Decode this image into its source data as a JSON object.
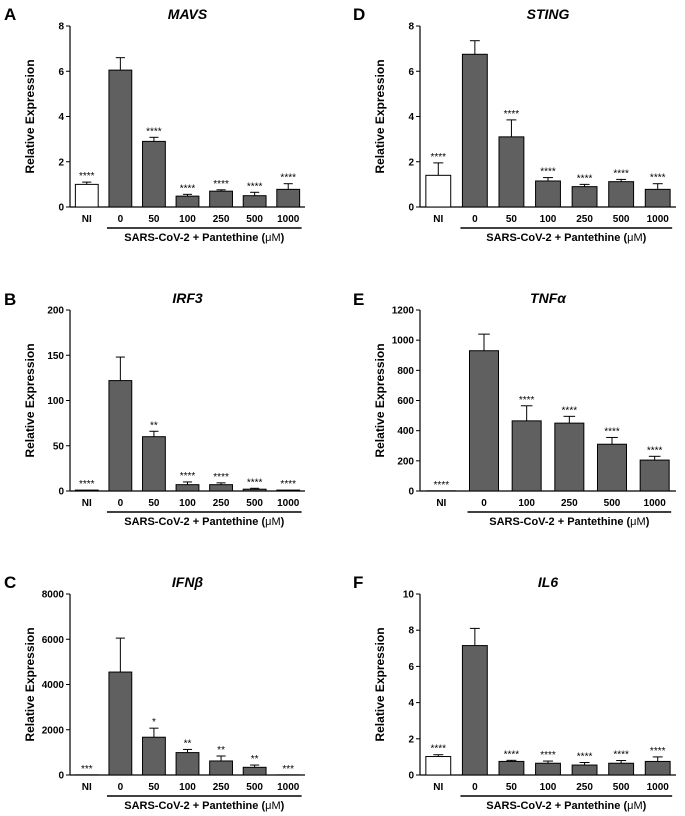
{
  "figure": {
    "group_label_prefix": "SARS-CoV-2 + Pantethine (",
    "group_label_unit": "μM",
    "group_label_suffix": ")"
  },
  "chart_data": [
    {
      "panel": "A",
      "title": "MAVS",
      "type": "bar",
      "ylabel": "Relative Expression",
      "ylim": [
        0,
        8
      ],
      "yticks": [
        "0",
        "2",
        "4",
        "6",
        "8"
      ],
      "categories": [
        "NI",
        "0",
        "50",
        "100",
        "250",
        "500",
        "1000"
      ],
      "values": [
        1.0,
        6.05,
        2.9,
        0.48,
        0.7,
        0.5,
        0.78
      ],
      "errors": [
        0.1,
        0.55,
        0.18,
        0.08,
        0.06,
        0.15,
        0.25
      ],
      "significance": [
        "****",
        "",
        "****",
        "****",
        "****",
        "****",
        "****"
      ],
      "fill": [
        "#ffffff",
        "#606060",
        "#606060",
        "#606060",
        "#606060",
        "#606060",
        "#606060"
      ],
      "group_span": [
        1,
        6
      ]
    },
    {
      "panel": "D",
      "title": "STING",
      "type": "bar",
      "ylabel": "Relative Expression",
      "ylim": [
        0,
        8
      ],
      "yticks": [
        "0",
        "2",
        "4",
        "6",
        "8"
      ],
      "categories": [
        "NI",
        "0",
        "50",
        "100",
        "250",
        "500",
        "1000"
      ],
      "values": [
        1.4,
        6.75,
        3.1,
        1.15,
        0.9,
        1.12,
        0.78
      ],
      "errors": [
        0.55,
        0.6,
        0.75,
        0.15,
        0.1,
        0.1,
        0.25
      ],
      "significance": [
        "****",
        "",
        "****",
        "****",
        "****",
        "****",
        "****"
      ],
      "fill": [
        "#ffffff",
        "#606060",
        "#606060",
        "#606060",
        "#606060",
        "#606060",
        "#606060"
      ],
      "group_span": [
        1,
        6
      ]
    },
    {
      "panel": "B",
      "title": "IRF3",
      "type": "bar",
      "ylabel": "Relative Expression",
      "ylim": [
        0,
        200
      ],
      "yticks": [
        "0",
        "50",
        "100",
        "150",
        "200"
      ],
      "categories": [
        "NI",
        "0",
        "50",
        "100",
        "250",
        "500",
        "1000"
      ],
      "values": [
        1,
        122,
        60,
        7,
        7,
        2,
        1
      ],
      "errors": [
        0,
        26,
        6,
        3,
        2,
        1,
        0
      ],
      "significance": [
        "****",
        "",
        "**",
        "****",
        "****",
        "****",
        "****"
      ],
      "fill": [
        "#ffffff",
        "#606060",
        "#606060",
        "#606060",
        "#606060",
        "#606060",
        "#606060"
      ],
      "group_span": [
        1,
        6
      ]
    },
    {
      "panel": "E",
      "title": "TNFα",
      "type": "bar",
      "ylabel": "Relative Expression",
      "ylim": [
        0,
        1200
      ],
      "yticks": [
        "0",
        "200",
        "400",
        "600",
        "800",
        "1000",
        "1200"
      ],
      "categories": [
        "NI",
        "0",
        "100",
        "250",
        "500",
        "1000"
      ],
      "values": [
        1,
        930,
        465,
        450,
        310,
        205
      ],
      "errors": [
        0,
        110,
        100,
        45,
        45,
        25
      ],
      "significance": [
        "****",
        "",
        "****",
        "****",
        "****",
        "****"
      ],
      "fill": [
        "#ffffff",
        "#606060",
        "#606060",
        "#606060",
        "#606060",
        "#606060"
      ],
      "group_span": [
        1,
        5
      ]
    },
    {
      "panel": "C",
      "title": "IFNβ",
      "type": "bar",
      "ylabel": "Relative Expression",
      "ylim": [
        0,
        8000
      ],
      "yticks": [
        "0",
        "2000",
        "4000",
        "6000",
        "8000"
      ],
      "categories": [
        "NI",
        "0",
        "50",
        "100",
        "250",
        "500",
        "1000"
      ],
      "values": [
        5,
        4550,
        1670,
        990,
        620,
        340,
        5
      ],
      "errors": [
        0,
        1500,
        400,
        140,
        220,
        100,
        0
      ],
      "significance": [
        "***",
        "",
        "*",
        "**",
        "**",
        "**",
        "***"
      ],
      "fill": [
        "#ffffff",
        "#606060",
        "#606060",
        "#606060",
        "#606060",
        "#606060",
        "#606060"
      ],
      "group_span": [
        1,
        6
      ]
    },
    {
      "panel": "F",
      "title": "IL6",
      "type": "bar",
      "ylabel": "Relative Expression",
      "ylim": [
        0,
        10
      ],
      "yticks": [
        "0",
        "2",
        "4",
        "6",
        "8",
        "10"
      ],
      "categories": [
        "NI",
        "0",
        "50",
        "100",
        "250",
        "500",
        "1000"
      ],
      "values": [
        1.02,
        7.15,
        0.75,
        0.65,
        0.55,
        0.65,
        0.75
      ],
      "errors": [
        0.1,
        0.95,
        0.06,
        0.12,
        0.14,
        0.15,
        0.25
      ],
      "significance": [
        "****",
        "",
        "****",
        "****",
        "****",
        "****",
        "****"
      ],
      "fill": [
        "#ffffff",
        "#606060",
        "#606060",
        "#606060",
        "#606060",
        "#606060",
        "#606060"
      ],
      "group_span": [
        1,
        6
      ]
    }
  ]
}
